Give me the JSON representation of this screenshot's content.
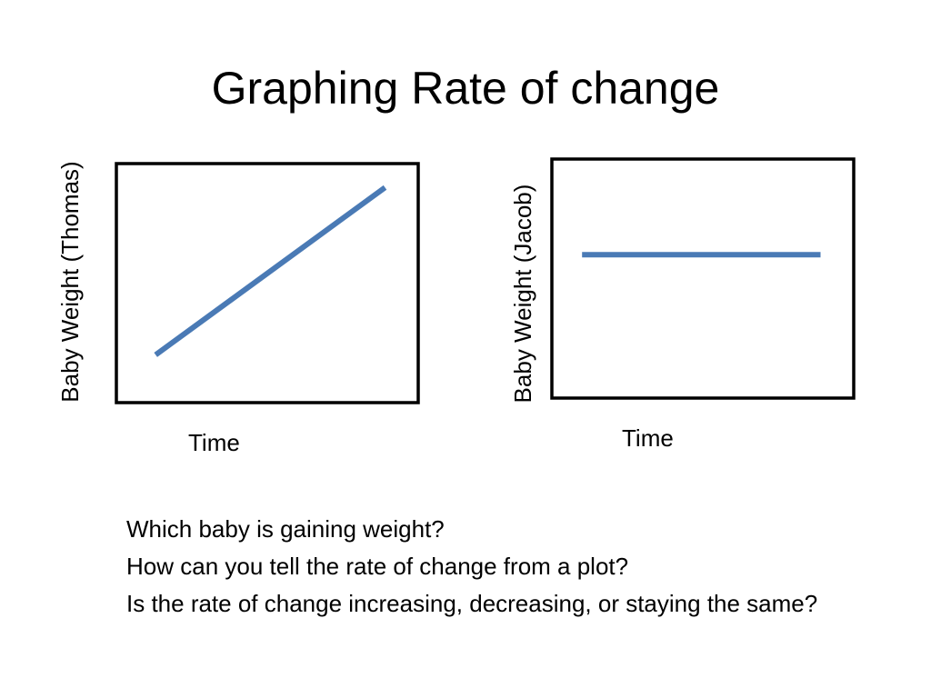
{
  "slide": {
    "title": "Graphing Rate of change",
    "questions": [
      "Which baby is gaining weight?",
      "How can you tell the rate of change from a plot?",
      "Is the rate of change increasing, decreasing, or staying the same?"
    ]
  },
  "colors": {
    "series_line": "#4a7ab5",
    "frame": "#000000",
    "background": "#ffffff"
  },
  "chart_data": [
    {
      "type": "line",
      "title": "",
      "xlabel": "Time",
      "ylabel": "Baby Weight (Thomas)",
      "grid": false,
      "legend": "none",
      "xlim": [
        0,
        1
      ],
      "ylim": [
        0,
        1
      ],
      "series": [
        {
          "x": [
            0.13,
            0.89
          ],
          "values": [
            0.2,
            0.9
          ]
        }
      ]
    },
    {
      "type": "line",
      "title": "",
      "xlabel": "Time",
      "ylabel": "Baby Weight (Jacob)",
      "grid": false,
      "legend": "none",
      "xlim": [
        0,
        1
      ],
      "ylim": [
        0,
        1
      ],
      "series": [
        {
          "x": [
            0.1,
            0.89
          ],
          "values": [
            0.6,
            0.6
          ]
        }
      ]
    }
  ]
}
